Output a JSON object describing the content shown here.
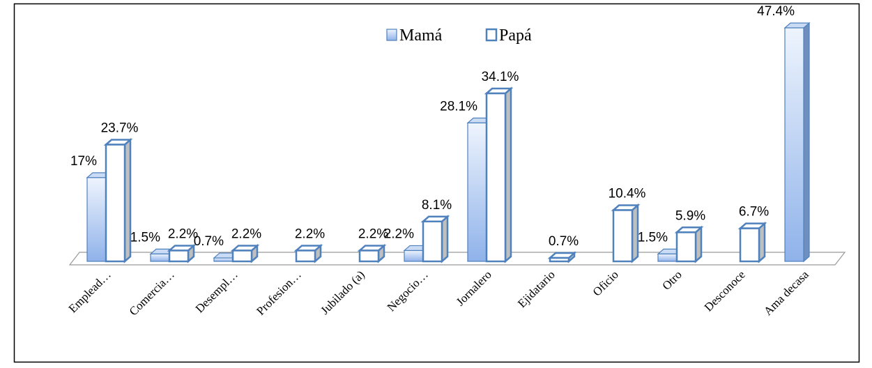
{
  "chart_data": {
    "type": "bar3d",
    "categories": [
      "Emplead…",
      "Comercia…",
      "Desempl…",
      "Profesion…",
      "Jubilado (a)",
      "Negocio…",
      "Jornalero",
      "Ejidatario",
      "Oficio",
      "Otro",
      "Desconoce",
      "Ama decasa"
    ],
    "series": [
      {
        "name": "Mamá",
        "color": "#a9c6f0",
        "values": [
          17,
          1.5,
          0.7,
          null,
          null,
          2.2,
          28.1,
          null,
          null,
          1.5,
          null,
          47.4
        ],
        "value_labels": [
          "17%",
          "1.5%",
          "0.7%",
          null,
          null,
          "2.2%",
          "28.1%",
          null,
          null,
          "1.5%",
          null,
          "47.4%"
        ]
      },
      {
        "name": "Papá",
        "color": "#ffffff",
        "values": [
          23.7,
          2.2,
          2.2,
          2.2,
          2.2,
          8.1,
          34.1,
          0.7,
          10.4,
          5.9,
          6.7,
          null
        ],
        "value_labels": [
          "23.7%",
          "2.2%",
          "2.2%",
          "2.2%",
          "2.2%",
          "8.1%",
          "34.1%",
          "0.7%",
          "10.4%",
          "5.9%",
          "6.7%",
          null
        ]
      }
    ],
    "legend": "top"
  }
}
